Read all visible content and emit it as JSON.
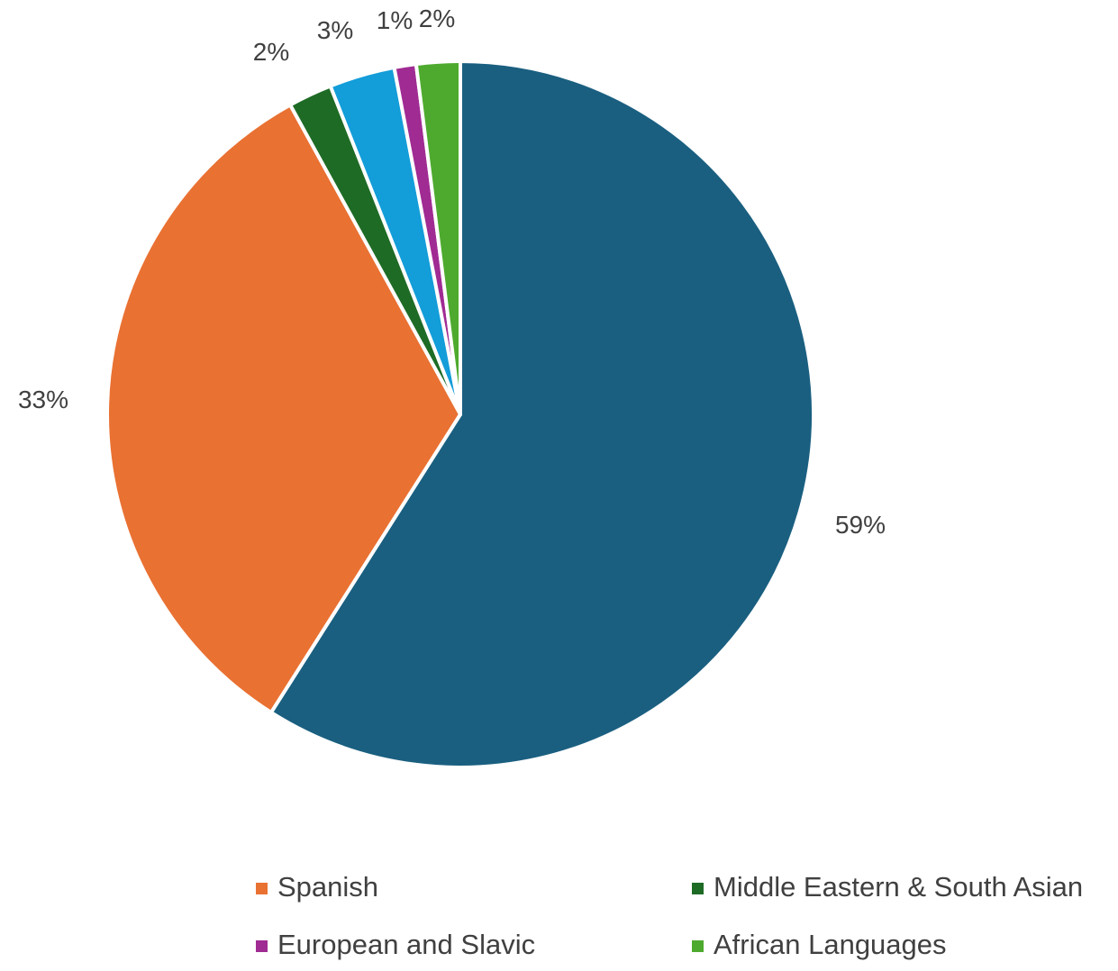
{
  "chart_data": {
    "type": "pie",
    "title": "",
    "slices": [
      {
        "name": "",
        "value": 59,
        "label": "59%",
        "color": "#1a5f80"
      },
      {
        "name": "Spanish",
        "value": 33,
        "label": "33%",
        "color": "#e97132"
      },
      {
        "name": "Middle Eastern & South Asian",
        "value": 2,
        "label": "2%",
        "color": "#1e6b25"
      },
      {
        "name": "",
        "value": 3,
        "label": "3%",
        "color": "#139dd9"
      },
      {
        "name": "European and Slavic",
        "value": 1,
        "label": "1%",
        "color": "#a02b93"
      },
      {
        "name": "African Languages",
        "value": 2,
        "label": "2%",
        "color": "#4eaa2e"
      }
    ],
    "legend": {
      "position": "bottom",
      "entries": [
        {
          "label": "Spanish",
          "color": "#e97132"
        },
        {
          "label": "Middle Eastern & South Asian",
          "color": "#1e6b25"
        },
        {
          "label": "European and Slavic",
          "color": "#a02b93"
        },
        {
          "label": "African Languages",
          "color": "#4eaa2e"
        }
      ]
    }
  }
}
